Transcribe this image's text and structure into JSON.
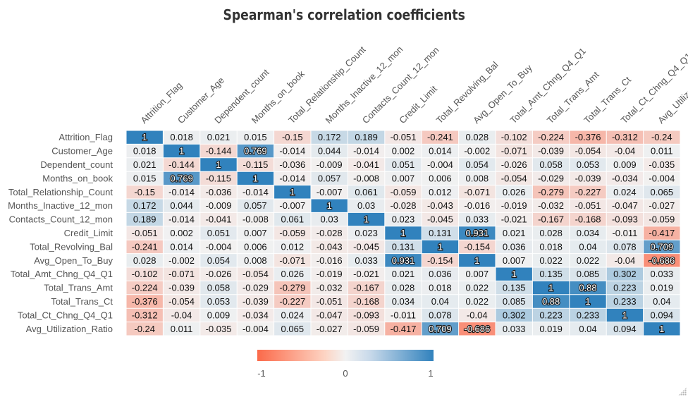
{
  "chart_data": {
    "type": "heatmap",
    "title": "Spearman's correlation coefficients",
    "variables": [
      "Attrition_Flag",
      "Customer_Age",
      "Dependent_count",
      "Months_on_book",
      "Total_Relationship_Count",
      "Months_Inactive_12_mon",
      "Contacts_Count_12_mon",
      "Credit_Limit",
      "Total_Revolving_Bal",
      "Avg_Open_To_Buy",
      "Total_Amt_Chng_Q4_Q1",
      "Total_Trans_Amt",
      "Total_Trans_Ct",
      "Total_Ct_Chng_Q4_Q1",
      "Avg_Utilization_Ratio"
    ],
    "values": [
      [
        "1",
        "0.018",
        "0.021",
        "0.015",
        "-0.15",
        "0.172",
        "0.189",
        "-0.051",
        "-0.241",
        "0.028",
        "-0.102",
        "-0.224",
        "-0.376",
        "-0.312",
        "-0.24"
      ],
      [
        "0.018",
        "1",
        "-0.144",
        "0.769",
        "-0.014",
        "0.044",
        "-0.014",
        "0.002",
        "0.014",
        "-0.002",
        "-0.071",
        "-0.039",
        "-0.054",
        "-0.04",
        "0.011"
      ],
      [
        "0.021",
        "-0.144",
        "1",
        "-0.115",
        "-0.036",
        "-0.009",
        "-0.041",
        "0.051",
        "-0.004",
        "0.054",
        "-0.026",
        "0.058",
        "0.053",
        "0.009",
        "-0.035"
      ],
      [
        "0.015",
        "0.769",
        "-0.115",
        "1",
        "-0.014",
        "0.057",
        "-0.008",
        "0.007",
        "0.006",
        "0.008",
        "-0.054",
        "-0.029",
        "-0.039",
        "-0.034",
        "-0.004"
      ],
      [
        "-0.15",
        "-0.014",
        "-0.036",
        "-0.014",
        "1",
        "-0.007",
        "0.061",
        "-0.059",
        "0.012",
        "-0.071",
        "0.026",
        "-0.279",
        "-0.227",
        "0.024",
        "0.065"
      ],
      [
        "0.172",
        "0.044",
        "-0.009",
        "0.057",
        "-0.007",
        "1",
        "0.03",
        "-0.028",
        "-0.043",
        "-0.016",
        "-0.019",
        "-0.032",
        "-0.051",
        "-0.047",
        "-0.027"
      ],
      [
        "0.189",
        "-0.014",
        "-0.041",
        "-0.008",
        "0.061",
        "0.03",
        "1",
        "0.023",
        "-0.045",
        "0.033",
        "-0.021",
        "-0.167",
        "-0.168",
        "-0.093",
        "-0.059"
      ],
      [
        "-0.051",
        "0.002",
        "0.051",
        "0.007",
        "-0.059",
        "-0.028",
        "0.023",
        "1",
        "0.131",
        "0.931",
        "0.021",
        "0.028",
        "0.034",
        "-0.011",
        "-0.417"
      ],
      [
        "-0.241",
        "0.014",
        "-0.004",
        "0.006",
        "0.012",
        "-0.043",
        "-0.045",
        "0.131",
        "1",
        "-0.154",
        "0.036",
        "0.018",
        "0.04",
        "0.078",
        "0.709"
      ],
      [
        "0.028",
        "-0.002",
        "0.054",
        "0.008",
        "-0.071",
        "-0.016",
        "0.033",
        "0.931",
        "-0.154",
        "1",
        "0.007",
        "0.022",
        "0.022",
        "-0.04",
        "-0.686"
      ],
      [
        "-0.102",
        "-0.071",
        "-0.026",
        "-0.054",
        "0.026",
        "-0.019",
        "-0.021",
        "0.021",
        "0.036",
        "0.007",
        "1",
        "0.135",
        "0.085",
        "0.302",
        "0.033"
      ],
      [
        "-0.224",
        "-0.039",
        "0.058",
        "-0.029",
        "-0.279",
        "-0.032",
        "-0.167",
        "0.028",
        "0.018",
        "0.022",
        "0.135",
        "1",
        "0.88",
        "0.223",
        "0.019"
      ],
      [
        "-0.376",
        "-0.054",
        "0.053",
        "-0.039",
        "-0.227",
        "-0.051",
        "-0.168",
        "0.034",
        "0.04",
        "0.022",
        "0.085",
        "0.88",
        "1",
        "0.233",
        "0.04"
      ],
      [
        "-0.312",
        "-0.04",
        "0.009",
        "-0.034",
        "0.024",
        "-0.047",
        "-0.093",
        "-0.011",
        "0.078",
        "-0.04",
        "0.302",
        "0.223",
        "0.233",
        "1",
        "0.094"
      ],
      [
        "-0.24",
        "0.011",
        "-0.035",
        "-0.004",
        "0.065",
        "-0.027",
        "-0.059",
        "-0.417",
        "0.709",
        "-0.686",
        "0.033",
        "0.019",
        "0.04",
        "0.094",
        "1"
      ]
    ],
    "legend": {
      "labels": [
        "-1",
        "0",
        "1"
      ],
      "min": -1,
      "max": 1
    },
    "colors": {
      "negative": "#fb6a4a",
      "neutral": "#f2f2f2",
      "positive": "#3182bd"
    }
  }
}
